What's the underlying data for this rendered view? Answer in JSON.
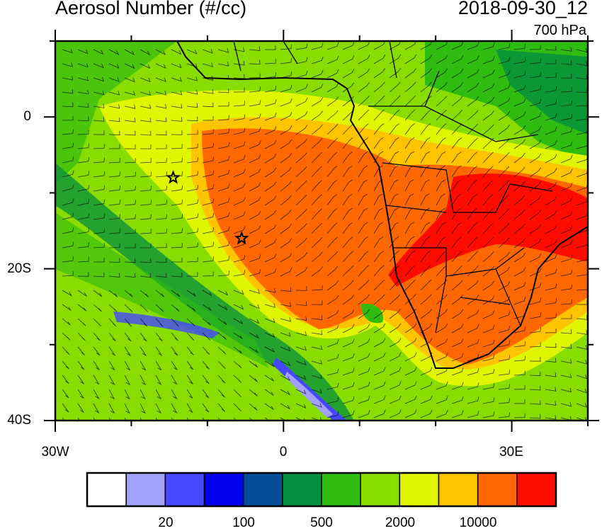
{
  "title": "Aerosol Number (#/cc)",
  "datetime": "2018-09-30_12",
  "level": "700 hPa",
  "axes": {
    "lat_labels": [
      "0",
      "20S",
      "40S"
    ],
    "lon_labels": [
      "30W",
      "0",
      "30E"
    ]
  },
  "map_extent": {
    "lon": [
      -30,
      40
    ],
    "lat": [
      -40,
      10
    ]
  },
  "markers": [
    {
      "type": "star",
      "lon": -14.5,
      "lat": -8
    },
    {
      "type": "star",
      "lon": -5.5,
      "lat": -16
    }
  ],
  "colorbar": {
    "colors": [
      "#fffffd",
      "#a2a2fe",
      "#4646fe",
      "#0000ee",
      "#044e98",
      "#048e40",
      "#30bb10",
      "#88dc00",
      "#e0f500",
      "#ffc400",
      "#ff6800",
      "#ff0c00"
    ],
    "labels": [
      "20",
      "100",
      "500",
      "2000",
      "10000"
    ]
  }
}
